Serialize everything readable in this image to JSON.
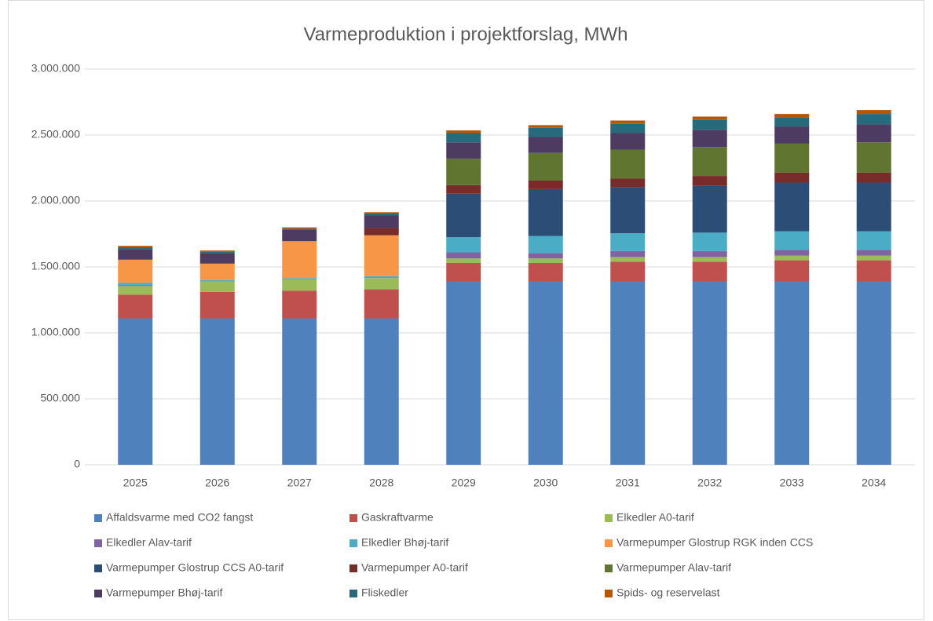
{
  "chart_data": {
    "type": "stacked_bar",
    "title": "Varmeproduktion i projektforslag, MWh",
    "categories": [
      "2025",
      "2026",
      "2027",
      "2028",
      "2029",
      "2030",
      "2031",
      "2032",
      "2033",
      "2034"
    ],
    "ylim": [
      0,
      3000000
    ],
    "yticks": [
      0,
      {
        "value": 500000,
        "label": "500.000"
      },
      {
        "value": 1000000,
        "label": "1.000.000"
      },
      {
        "value": 1500000,
        "label": "1.500.000"
      },
      {
        "value": 2000000,
        "label": "2.000.000"
      },
      {
        "value": 2500000,
        "label": "2.500.000"
      },
      {
        "value": 3000000,
        "label": "3.000.000"
      }
    ],
    "grid": true,
    "legend": "bottom",
    "series": [
      {
        "name": "Affaldsvarme med CO2 fangst",
        "color": "#4f81bd",
        "values": [
          1110000,
          1110000,
          1110000,
          1110000,
          1390000,
          1390000,
          1390000,
          1390000,
          1390000,
          1390000
        ]
      },
      {
        "name": "Gaskraftvarme",
        "color": "#c0504d",
        "values": [
          180000,
          200000,
          210000,
          220000,
          140000,
          140000,
          150000,
          150000,
          160000,
          160000
        ]
      },
      {
        "name": "Elkedler A0-tarif",
        "color": "#9bbb59",
        "values": [
          65000,
          80000,
          85000,
          85000,
          35000,
          35000,
          35000,
          35000,
          35000,
          35000
        ]
      },
      {
        "name": "Elkedler Alav-tarif",
        "color": "#8064a2",
        "values": [
          5000,
          0,
          0,
          0,
          45000,
          40000,
          45000,
          45000,
          45000,
          45000
        ]
      },
      {
        "name": "Elkedler Bhøj-tarif",
        "color": "#4bacc6",
        "values": [
          20000,
          10000,
          10000,
          15000,
          115000,
          130000,
          135000,
          140000,
          140000,
          140000
        ]
      },
      {
        "name": "Varmepumper Glostrup RGK inden CCS",
        "color": "#f79646",
        "values": [
          175000,
          125000,
          280000,
          310000,
          0,
          0,
          0,
          0,
          0,
          0
        ]
      },
      {
        "name": "Varmepumper Glostrup CCS A0-tarif",
        "color": "#2c4d75",
        "values": [
          0,
          0,
          0,
          0,
          330000,
          355000,
          350000,
          355000,
          370000,
          370000
        ]
      },
      {
        "name": "Varmepumper A0-tarif",
        "color": "#772c2a",
        "values": [
          0,
          0,
          0,
          55000,
          65000,
          65000,
          65000,
          75000,
          75000,
          75000
        ]
      },
      {
        "name": "Varmepumper Alav-tarif",
        "color": "#5f7530",
        "values": [
          0,
          0,
          0,
          0,
          200000,
          210000,
          220000,
          220000,
          220000,
          230000
        ]
      },
      {
        "name": "Varmepumper Bhøj-tarif",
        "color": "#4d3b62",
        "values": [
          80000,
          80000,
          85000,
          95000,
          125000,
          120000,
          125000,
          130000,
          130000,
          135000
        ]
      },
      {
        "name": "Fliskedler",
        "color": "#276a7c",
        "values": [
          15000,
          10000,
          10000,
          15000,
          70000,
          70000,
          70000,
          75000,
          70000,
          80000
        ]
      },
      {
        "name": "Spids- og reservelast",
        "color": "#b65708",
        "values": [
          10000,
          10000,
          10000,
          10000,
          20000,
          20000,
          25000,
          25000,
          25000,
          30000
        ]
      }
    ]
  }
}
